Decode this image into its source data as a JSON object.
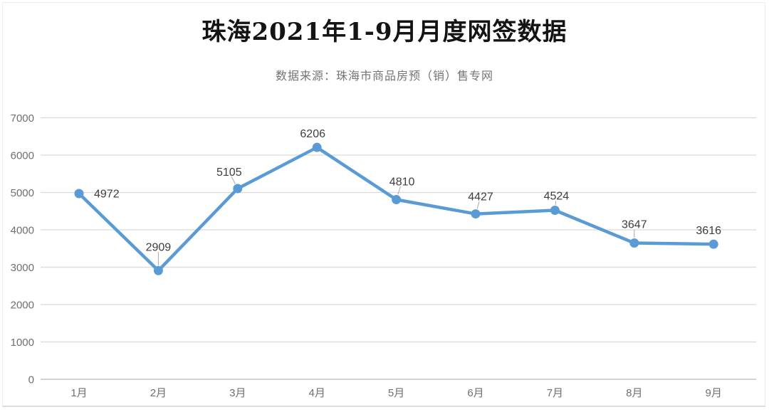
{
  "chart": {
    "title": "珠海2021年1-9月月度网签数据",
    "subtitle": "数据来源：珠海市商品房预（销）售专网"
  },
  "chart_data": {
    "type": "line",
    "title": "珠海2021年1-9月月度网签数据",
    "subtitle": "数据来源：珠海市商品房预（销）售专网",
    "categories": [
      "1月",
      "2月",
      "3月",
      "4月",
      "5月",
      "6月",
      "7月",
      "8月",
      "9月"
    ],
    "values": [
      4972,
      2909,
      5105,
      6206,
      4810,
      4427,
      4524,
      3647,
      3616
    ],
    "data_labels_visible": true,
    "xlabel": "",
    "ylabel": "",
    "ylim": [
      0,
      7000
    ],
    "yticks": [
      0,
      1000,
      2000,
      3000,
      4000,
      5000,
      6000,
      7000
    ],
    "grid": true,
    "legend_position": "none",
    "colors": {
      "line": "#5B9BD5",
      "marker": "#5B9BD5",
      "gridline": "#d9d9d9",
      "zero_axis": "#c4c4c4",
      "axis_tick_text": "#6f6f6f",
      "data_label_text": "#3d3d3d",
      "leader_line": "#a8a8a8",
      "title_text": "#141414",
      "subtitle_text": "#737373"
    }
  }
}
